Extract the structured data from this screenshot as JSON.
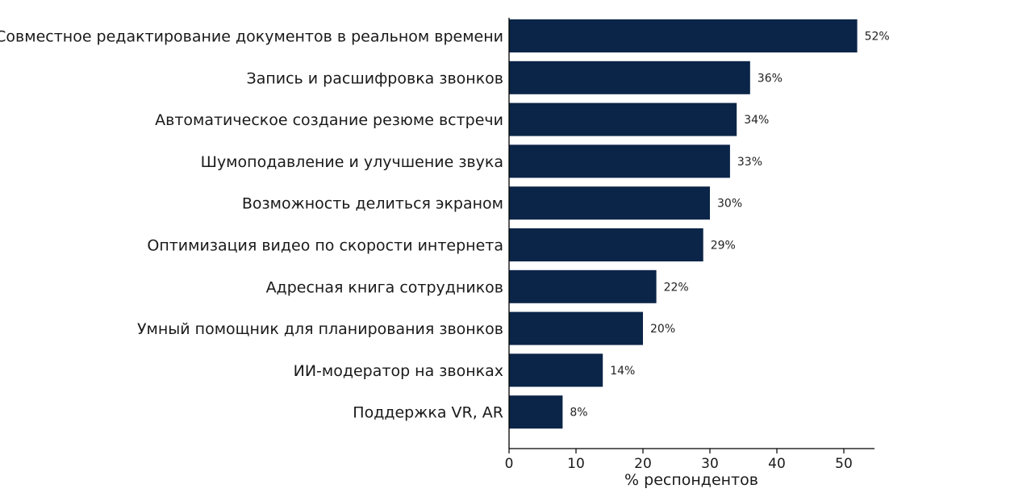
{
  "chart_data": {
    "type": "bar",
    "orientation": "horizontal",
    "categories": [
      "Совместное редактирование документов в реальном времени",
      "Запись и расшифровка звонков",
      "Автоматическое создание резюме встречи",
      "Шумоподавление и улучшение звука",
      "Возможность делиться экраном",
      "Оптимизация видео по скорости интернета",
      "Адресная книга сотрудников",
      "Умный помощник для планирования звонков",
      "ИИ-модератор на звонках",
      "Поддержка VR, AR"
    ],
    "values": [
      52,
      36,
      34,
      33,
      30,
      29,
      22,
      20,
      14,
      8
    ],
    "value_labels": [
      "52%",
      "36%",
      "34%",
      "33%",
      "30%",
      "29%",
      "22%",
      "20%",
      "14%",
      "8%"
    ],
    "xlabel": "% респондентов",
    "ylabel": "",
    "xlim": [
      0,
      55
    ],
    "xticks": [
      0,
      10,
      20,
      30,
      40,
      50
    ],
    "bar_color": "#0b2548",
    "grid": false
  }
}
